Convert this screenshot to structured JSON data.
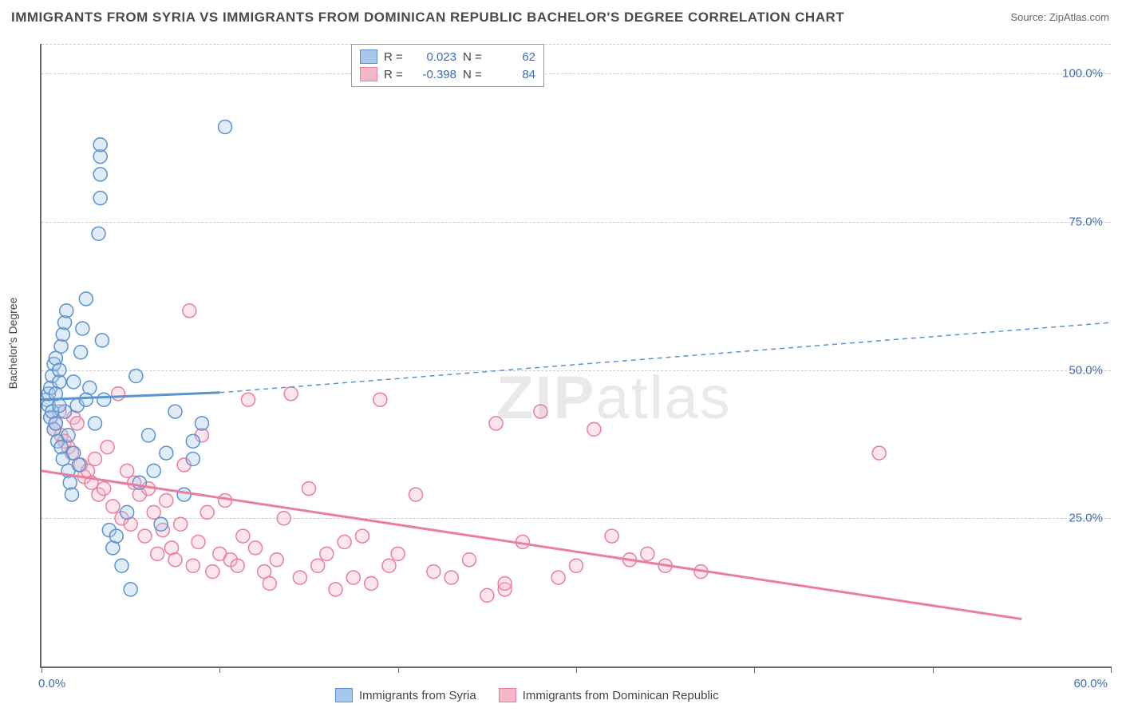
{
  "title": "IMMIGRANTS FROM SYRIA VS IMMIGRANTS FROM DOMINICAN REPUBLIC BACHELOR'S DEGREE CORRELATION CHART",
  "source": "Source: ZipAtlas.com",
  "watermark_left": "ZIP",
  "watermark_right": "atlas",
  "ylabel": "Bachelor's Degree",
  "plot": {
    "x_min": 0,
    "x_max": 60,
    "y_min": 0,
    "y_max": 105,
    "ytick_values": [
      25,
      50,
      75,
      100
    ],
    "ytick_labels": [
      "25.0%",
      "50.0%",
      "75.0%",
      "100.0%"
    ],
    "xtick_values": [
      0,
      10,
      20,
      30,
      40,
      50,
      60
    ],
    "xtick_label_0": "0.0%",
    "xtick_label_60": "60.0%",
    "background_color": "#ffffff",
    "grid_color": "#cccccc",
    "marker_radius": 8.5,
    "marker_stroke_width": 1.5,
    "marker_fill_opacity": 0.35
  },
  "series": {
    "syria": {
      "label": "Immigrants from Syria",
      "color_fill": "#a7c8ec",
      "color_stroke": "#5a93d0",
      "r_value": "0.023",
      "n_value": "62",
      "trend_solid": {
        "x1": 0,
        "y1": 45,
        "x2": 10,
        "y2": 46.2
      },
      "trend_dash": {
        "x1": 10,
        "y1": 46.2,
        "x2": 60,
        "y2": 58
      },
      "trend_width_solid": 3,
      "trend_width_dash": 1.5,
      "dash_pattern": "6,5",
      "points": [
        [
          0.3,
          45
        ],
        [
          0.4,
          44
        ],
        [
          0.4,
          46
        ],
        [
          0.5,
          47
        ],
        [
          0.5,
          42
        ],
        [
          0.6,
          49
        ],
        [
          0.6,
          43
        ],
        [
          0.7,
          51
        ],
        [
          0.7,
          40
        ],
        [
          0.8,
          52
        ],
        [
          0.8,
          41
        ],
        [
          0.9,
          38
        ],
        [
          1.0,
          48
        ],
        [
          1.0,
          50
        ],
        [
          1.1,
          54
        ],
        [
          1.1,
          37
        ],
        [
          1.2,
          56
        ],
        [
          1.2,
          35
        ],
        [
          1.3,
          58
        ],
        [
          1.3,
          43
        ],
        [
          1.4,
          60
        ],
        [
          1.5,
          39
        ],
        [
          1.5,
          33
        ],
        [
          1.6,
          31
        ],
        [
          1.7,
          29
        ],
        [
          1.8,
          36
        ],
        [
          2.0,
          44
        ],
        [
          2.1,
          34
        ],
        [
          2.2,
          53
        ],
        [
          2.3,
          57
        ],
        [
          2.5,
          62
        ],
        [
          2.7,
          47
        ],
        [
          3.0,
          41
        ],
        [
          3.2,
          73
        ],
        [
          3.3,
          79
        ],
        [
          3.3,
          86
        ],
        [
          3.3,
          83
        ],
        [
          3.3,
          88
        ],
        [
          3.4,
          55
        ],
        [
          3.5,
          45
        ],
        [
          3.8,
          23
        ],
        [
          4.0,
          20
        ],
        [
          4.2,
          22
        ],
        [
          4.5,
          17
        ],
        [
          4.8,
          26
        ],
        [
          5.0,
          13
        ],
        [
          5.3,
          49
        ],
        [
          5.5,
          31
        ],
        [
          6.0,
          39
        ],
        [
          6.3,
          33
        ],
        [
          6.7,
          24
        ],
        [
          7.0,
          36
        ],
        [
          7.5,
          43
        ],
        [
          8.0,
          29
        ],
        [
          8.5,
          38
        ],
        [
          9.0,
          41
        ],
        [
          10.3,
          91
        ],
        [
          8.5,
          35
        ],
        [
          2.5,
          45
        ],
        [
          1.8,
          48
        ],
        [
          1.0,
          44
        ],
        [
          0.8,
          46
        ]
      ]
    },
    "dominican": {
      "label": "Immigrants from Dominican Republic",
      "color_fill": "#f5b8c6",
      "color_stroke": "#e97ea0",
      "r_value": "-0.398",
      "n_value": "84",
      "trend_solid": {
        "x1": 0,
        "y1": 33,
        "x2": 55,
        "y2": 8
      },
      "trend_width_solid": 3,
      "points": [
        [
          0.5,
          42
        ],
        [
          0.7,
          40
        ],
        [
          0.8,
          41
        ],
        [
          1.0,
          43
        ],
        [
          1.1,
          39
        ],
        [
          1.3,
          38
        ],
        [
          1.5,
          37
        ],
        [
          1.7,
          36
        ],
        [
          1.8,
          42
        ],
        [
          2.0,
          41
        ],
        [
          2.2,
          34
        ],
        [
          2.4,
          32
        ],
        [
          2.6,
          33
        ],
        [
          2.8,
          31
        ],
        [
          3.0,
          35
        ],
        [
          3.2,
          29
        ],
        [
          3.5,
          30
        ],
        [
          3.7,
          37
        ],
        [
          4.0,
          27
        ],
        [
          4.3,
          46
        ],
        [
          4.5,
          25
        ],
        [
          4.8,
          33
        ],
        [
          5.0,
          24
        ],
        [
          5.2,
          31
        ],
        [
          5.5,
          29
        ],
        [
          5.8,
          22
        ],
        [
          6.0,
          30
        ],
        [
          6.3,
          26
        ],
        [
          6.5,
          19
        ],
        [
          6.8,
          23
        ],
        [
          7.0,
          28
        ],
        [
          7.3,
          20
        ],
        [
          7.5,
          18
        ],
        [
          7.8,
          24
        ],
        [
          8.0,
          34
        ],
        [
          8.3,
          60
        ],
        [
          8.5,
          17
        ],
        [
          8.8,
          21
        ],
        [
          9.0,
          39
        ],
        [
          9.3,
          26
        ],
        [
          9.6,
          16
        ],
        [
          10.0,
          19
        ],
        [
          10.3,
          28
        ],
        [
          10.6,
          18
        ],
        [
          11.0,
          17
        ],
        [
          11.3,
          22
        ],
        [
          11.6,
          45
        ],
        [
          12.0,
          20
        ],
        [
          12.5,
          16
        ],
        [
          12.8,
          14
        ],
        [
          13.2,
          18
        ],
        [
          13.6,
          25
        ],
        [
          14.0,
          46
        ],
        [
          14.5,
          15
        ],
        [
          15.0,
          30
        ],
        [
          15.5,
          17
        ],
        [
          16.0,
          19
        ],
        [
          16.5,
          13
        ],
        [
          17.0,
          21
        ],
        [
          17.5,
          15
        ],
        [
          18.0,
          22
        ],
        [
          18.5,
          14
        ],
        [
          19.0,
          45
        ],
        [
          19.5,
          17
        ],
        [
          20.0,
          19
        ],
        [
          21.0,
          29
        ],
        [
          22.0,
          16
        ],
        [
          23.0,
          15
        ],
        [
          24.0,
          18
        ],
        [
          25.0,
          12
        ],
        [
          25.5,
          41
        ],
        [
          26.0,
          13
        ],
        [
          27.0,
          21
        ],
        [
          28.0,
          43
        ],
        [
          29.0,
          15
        ],
        [
          30.0,
          17
        ],
        [
          31.0,
          40
        ],
        [
          32.0,
          22
        ],
        [
          33.0,
          18
        ],
        [
          34.0,
          19
        ],
        [
          35.0,
          17
        ],
        [
          37.0,
          16
        ],
        [
          47.0,
          36
        ],
        [
          26.0,
          14
        ]
      ]
    }
  },
  "legend_top": {
    "r_label": "R  =",
    "n_label": "N  ="
  }
}
